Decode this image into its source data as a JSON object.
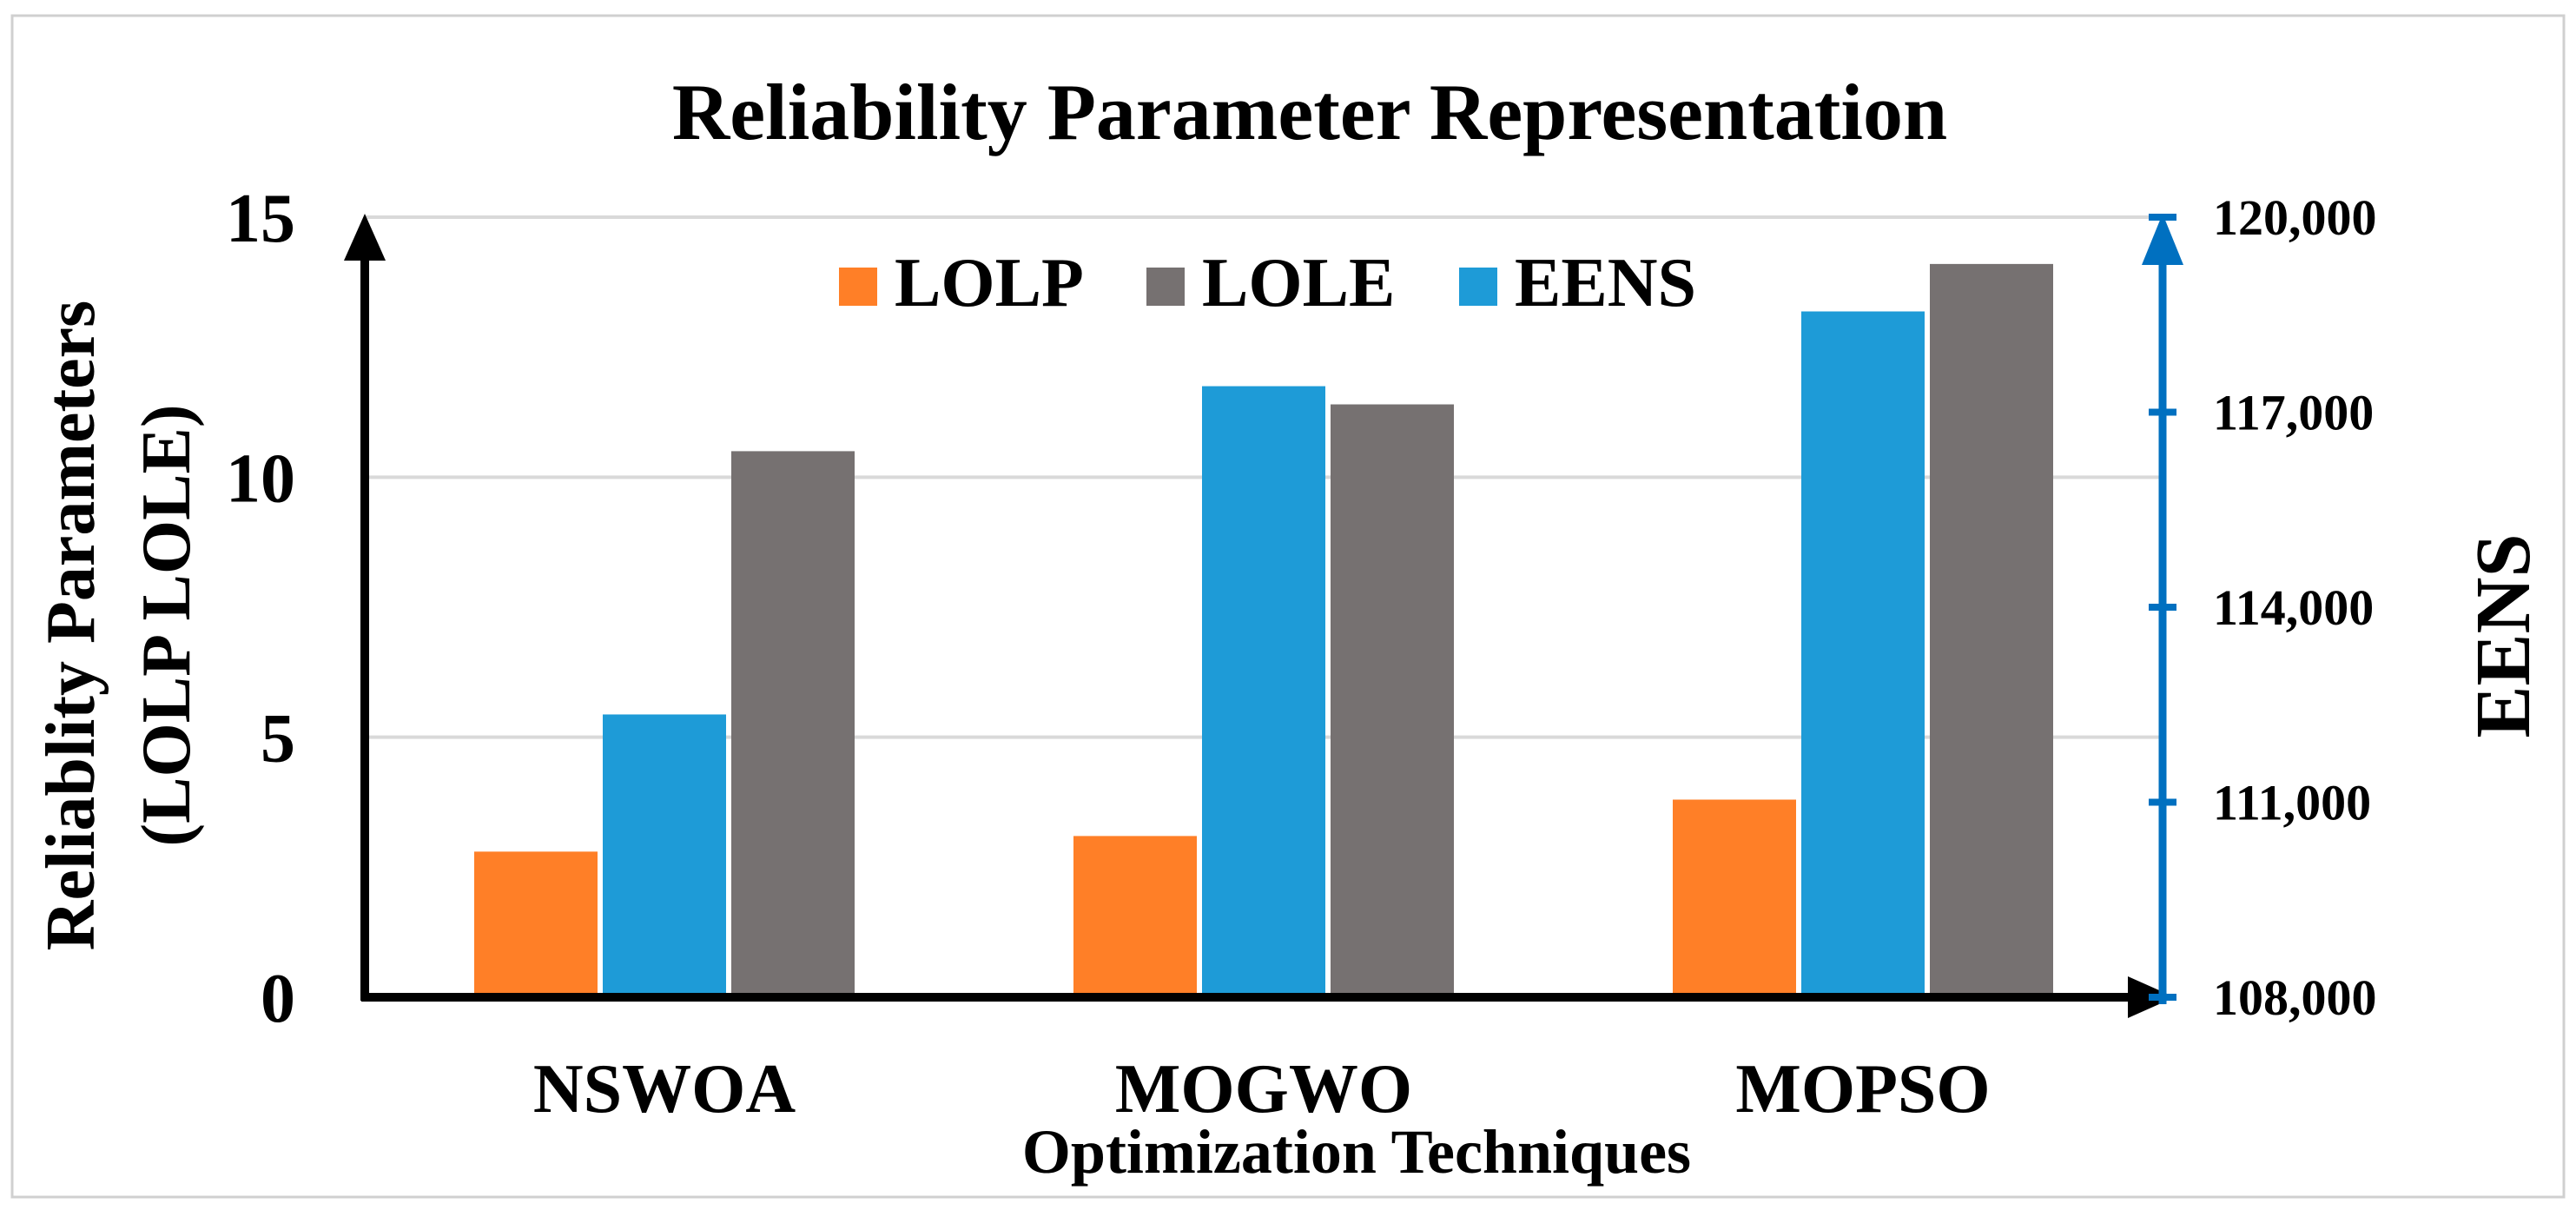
{
  "chart_data": {
    "type": "bar",
    "title": "Reliability Parameter Representation",
    "xlabel": "Optimization Techniques",
    "ylabel_lines": [
      "Reliablity Parameters",
      "(LOLP LOLE)"
    ],
    "y2label": "EENS",
    "categories": [
      "NSWOA",
      "MOGWO",
      "MOPSO"
    ],
    "ylim": [
      0,
      15
    ],
    "yticks": [
      0,
      5,
      10,
      15
    ],
    "y2lim": [
      108000,
      120000
    ],
    "y2ticks": [
      108000,
      111000,
      114000,
      117000,
      120000
    ],
    "y2tick_labels": [
      "108,000",
      "111,000",
      "114,000",
      "117,000",
      "120,000"
    ],
    "grid": true,
    "legend_position": "top-center",
    "series": [
      {
        "name": "LOLP",
        "axis": "left",
        "color": "#FF7F27",
        "values": [
          2.8,
          3.1,
          3.8
        ]
      },
      {
        "name": "EENS",
        "axis": "right",
        "color": "#1E9BD7",
        "values": [
          112350,
          117400,
          118550
        ]
      },
      {
        "name": "LOLE",
        "axis": "left",
        "color": "#767171",
        "values": [
          10.5,
          11.4,
          14.1
        ]
      }
    ],
    "legend_order": [
      "LOLP",
      "LOLE",
      "EENS"
    ]
  },
  "colors": {
    "left_axis": "#000000",
    "right_axis": "#0070C0",
    "grid": "#D9D9D9",
    "frame": "#D0D0D0"
  }
}
